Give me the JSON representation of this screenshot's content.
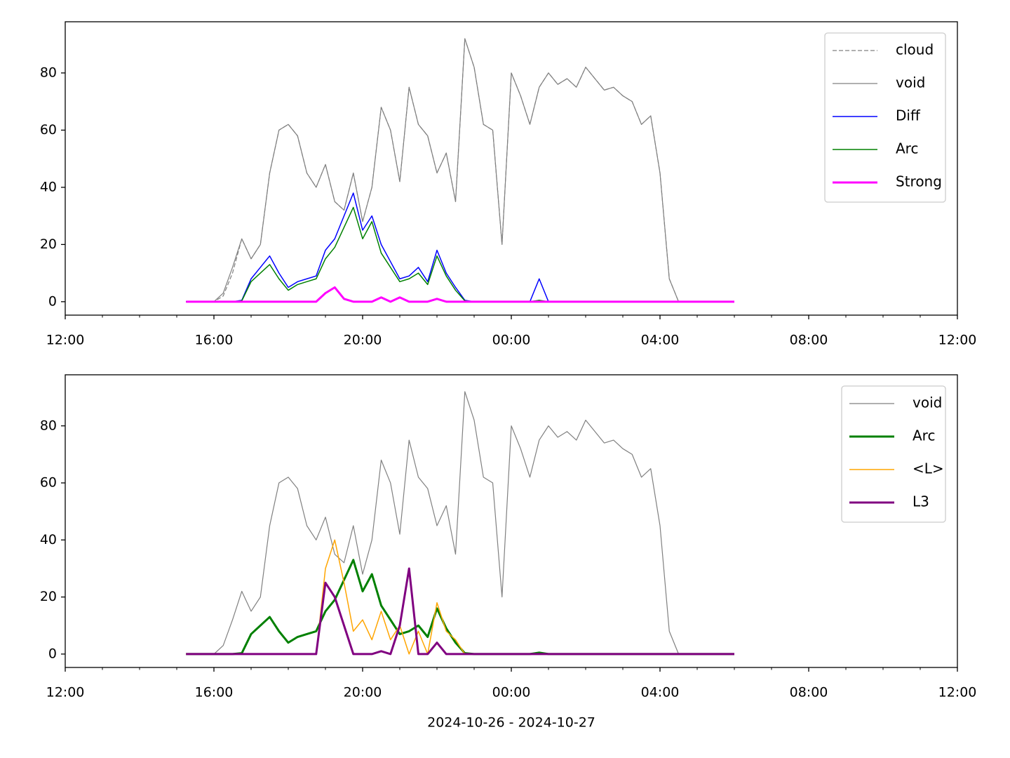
{
  "chart_data": [
    {
      "type": "line",
      "x": [
        15.25,
        15.5,
        15.75,
        16,
        16.25,
        16.5,
        16.75,
        17,
        17.25,
        17.5,
        17.75,
        18,
        18.25,
        18.5,
        18.75,
        19,
        19.25,
        19.5,
        19.75,
        20,
        20.25,
        20.5,
        20.75,
        21,
        21.25,
        21.5,
        21.75,
        22,
        22.25,
        22.5,
        22.75,
        23,
        23.25,
        23.5,
        23.75,
        24,
        24.25,
        24.5,
        24.75,
        25,
        25.25,
        25.5,
        25.75,
        26,
        26.25,
        26.5,
        26.75,
        27,
        27.25,
        27.5,
        27.75,
        28,
        28.25,
        28.5,
        28.75,
        29,
        29.25,
        29.5,
        29.75,
        30
      ],
      "series": [
        {
          "name": "cloud",
          "color": "#808080",
          "linestyle": "dashed",
          "linewidth": 1.2,
          "values": [
            0,
            0,
            0,
            0,
            2,
            10,
            22,
            15,
            20,
            45,
            60,
            62,
            58,
            45,
            40,
            48,
            35,
            32,
            45,
            28,
            40,
            68,
            60,
            42,
            75,
            62,
            58,
            45,
            52,
            35,
            92,
            82,
            62,
            60,
            20,
            80,
            72,
            62,
            75,
            80,
            76,
            78,
            75,
            82,
            78,
            74,
            75,
            72,
            70,
            62,
            65,
            45,
            8,
            0,
            0,
            0,
            0,
            0,
            0,
            0
          ]
        },
        {
          "name": "void",
          "color": "#808080",
          "linestyle": "solid",
          "linewidth": 1.2,
          "values": [
            0,
            0,
            0,
            0,
            3,
            12,
            22,
            15,
            20,
            45,
            60,
            62,
            58,
            45,
            40,
            48,
            35,
            32,
            45,
            28,
            40,
            68,
            60,
            42,
            75,
            62,
            58,
            45,
            52,
            35,
            92,
            82,
            62,
            60,
            20,
            80,
            72,
            62,
            75,
            80,
            76,
            78,
            75,
            82,
            78,
            74,
            75,
            72,
            70,
            62,
            65,
            45,
            8,
            0,
            0,
            0,
            0,
            0,
            0,
            0
          ]
        },
        {
          "name": "Diff",
          "color": "#0000ff",
          "linestyle": "solid",
          "linewidth": 1.5,
          "values": [
            0,
            0,
            0,
            0,
            0,
            0,
            0.5,
            8,
            12,
            16,
            10,
            5,
            7,
            8,
            9,
            18,
            22,
            30,
            38,
            25,
            30,
            20,
            14,
            8,
            9,
            12,
            7,
            18,
            10,
            5,
            0.5,
            0,
            0,
            0,
            0,
            0,
            0,
            0,
            8,
            0,
            0,
            0,
            0,
            0,
            0,
            0,
            0,
            0,
            0,
            0,
            0,
            0,
            0,
            0,
            0,
            0,
            0,
            0,
            0,
            0
          ]
        },
        {
          "name": "Arc",
          "color": "#008000",
          "linestyle": "solid",
          "linewidth": 1.5,
          "values": [
            0,
            0,
            0,
            0,
            0,
            0,
            0.3,
            7,
            10,
            13,
            8,
            4,
            6,
            7,
            8,
            15,
            19,
            26,
            33,
            22,
            28,
            17,
            12,
            7,
            8,
            10,
            6,
            16,
            9,
            4,
            0.3,
            0,
            0,
            0,
            0,
            0,
            0,
            0,
            0.5,
            0,
            0,
            0,
            0,
            0,
            0,
            0,
            0,
            0,
            0,
            0,
            0,
            0,
            0,
            0,
            0,
            0,
            0,
            0,
            0,
            0
          ]
        },
        {
          "name": "Strong",
          "color": "#ff00ff",
          "linestyle": "solid",
          "linewidth": 3,
          "values": [
            0,
            0,
            0,
            0,
            0,
            0,
            0,
            0,
            0,
            0,
            0,
            0,
            0,
            0,
            0,
            3,
            5,
            1,
            0,
            0,
            0,
            1.5,
            0,
            1.5,
            0,
            0,
            0,
            1,
            0,
            0,
            0,
            0,
            0,
            0,
            0,
            0,
            0,
            0,
            0,
            0,
            0,
            0,
            0,
            0,
            0,
            0,
            0,
            0,
            0,
            0,
            0,
            0,
            0,
            0,
            0,
            0,
            0,
            0,
            0,
            0
          ]
        }
      ],
      "xlim": [
        12,
        36
      ],
      "xticks": [
        {
          "value": 12,
          "label": "12:00"
        },
        {
          "value": 16,
          "label": "16:00"
        },
        {
          "value": 20,
          "label": "20:00"
        },
        {
          "value": 24,
          "label": "00:00"
        },
        {
          "value": 28,
          "label": "04:00"
        },
        {
          "value": 32,
          "label": "08:00"
        },
        {
          "value": 36,
          "label": "12:00"
        }
      ],
      "xminorticks": [
        13,
        14,
        15,
        17,
        18,
        19,
        21,
        22,
        23,
        25,
        26,
        27,
        29,
        30,
        31,
        33,
        34,
        35
      ],
      "ylim": [
        -4.7,
        97.9
      ],
      "yticks": [
        0,
        20,
        40,
        60,
        80
      ],
      "legend": "upper right"
    },
    {
      "type": "line",
      "x": [
        15.25,
        15.5,
        15.75,
        16,
        16.25,
        16.5,
        16.75,
        17,
        17.25,
        17.5,
        17.75,
        18,
        18.25,
        18.5,
        18.75,
        19,
        19.25,
        19.5,
        19.75,
        20,
        20.25,
        20.5,
        20.75,
        21,
        21.25,
        21.5,
        21.75,
        22,
        22.25,
        22.5,
        22.75,
        23,
        23.25,
        23.5,
        23.75,
        24,
        24.25,
        24.5,
        24.75,
        25,
        25.25,
        25.5,
        25.75,
        26,
        26.25,
        26.5,
        26.75,
        27,
        27.25,
        27.5,
        27.75,
        28,
        28.25,
        28.5,
        28.75,
        29,
        29.25,
        29.5,
        29.75,
        30
      ],
      "series": [
        {
          "name": "void",
          "color": "#808080",
          "linestyle": "solid",
          "linewidth": 1.2,
          "values": [
            0,
            0,
            0,
            0,
            3,
            12,
            22,
            15,
            20,
            45,
            60,
            62,
            58,
            45,
            40,
            48,
            35,
            32,
            45,
            28,
            40,
            68,
            60,
            42,
            75,
            62,
            58,
            45,
            52,
            35,
            92,
            82,
            62,
            60,
            20,
            80,
            72,
            62,
            75,
            80,
            76,
            78,
            75,
            82,
            78,
            74,
            75,
            72,
            70,
            62,
            65,
            45,
            8,
            0,
            0,
            0,
            0,
            0,
            0,
            0
          ]
        },
        {
          "name": "Arc",
          "color": "#008000",
          "linestyle": "solid",
          "linewidth": 3,
          "values": [
            0,
            0,
            0,
            0,
            0,
            0,
            0.3,
            7,
            10,
            13,
            8,
            4,
            6,
            7,
            8,
            15,
            19,
            26,
            33,
            22,
            28,
            17,
            12,
            7,
            8,
            10,
            6,
            16,
            9,
            4,
            0.3,
            0,
            0,
            0,
            0,
            0,
            0,
            0,
            0.5,
            0,
            0,
            0,
            0,
            0,
            0,
            0,
            0,
            0,
            0,
            0,
            0,
            0,
            0,
            0,
            0,
            0,
            0,
            0,
            0,
            0
          ]
        },
        {
          "name": "<L>",
          "color": "#ffa500",
          "linestyle": "solid",
          "linewidth": 1.5,
          "values": [
            0,
            0,
            0,
            0,
            0,
            0,
            0,
            0,
            0,
            0,
            0,
            0,
            0,
            0,
            0,
            30,
            40,
            25,
            8,
            12,
            5,
            15,
            5,
            10,
            0,
            8,
            0,
            18,
            8,
            5,
            0,
            0,
            0,
            0,
            0,
            0,
            0,
            0,
            0,
            0,
            0,
            0,
            0,
            0,
            0,
            0,
            0,
            0,
            0,
            0,
            0,
            0,
            0,
            0,
            0,
            0,
            0,
            0,
            0,
            0
          ]
        },
        {
          "name": "L3",
          "color": "#800080",
          "linestyle": "solid",
          "linewidth": 3,
          "values": [
            0,
            0,
            0,
            0,
            0,
            0,
            0,
            0,
            0,
            0,
            0,
            0,
            0,
            0,
            0,
            25,
            20,
            10,
            0,
            0,
            0,
            1,
            0,
            10,
            30,
            0,
            0,
            4,
            0,
            0,
            0,
            0,
            0,
            0,
            0,
            0,
            0,
            0,
            0,
            0,
            0,
            0,
            0,
            0,
            0,
            0,
            0,
            0,
            0,
            0,
            0,
            0,
            0,
            0,
            0,
            0,
            0,
            0,
            0,
            0
          ]
        }
      ],
      "xlim": [
        12,
        36
      ],
      "xticks": [
        {
          "value": 12,
          "label": "12:00"
        },
        {
          "value": 16,
          "label": "16:00"
        },
        {
          "value": 20,
          "label": "20:00"
        },
        {
          "value": 24,
          "label": "00:00"
        },
        {
          "value": 28,
          "label": "04:00"
        },
        {
          "value": 32,
          "label": "08:00"
        },
        {
          "value": 36,
          "label": "12:00"
        }
      ],
      "xminorticks": [
        13,
        14,
        15,
        17,
        18,
        19,
        21,
        22,
        23,
        25,
        26,
        27,
        29,
        30,
        31,
        33,
        34,
        35
      ],
      "ylim": [
        -4.7,
        97.9
      ],
      "yticks": [
        0,
        20,
        40,
        60,
        80
      ],
      "legend": "upper right",
      "xlabel": "2024-10-26 - 2024-10-27"
    }
  ]
}
